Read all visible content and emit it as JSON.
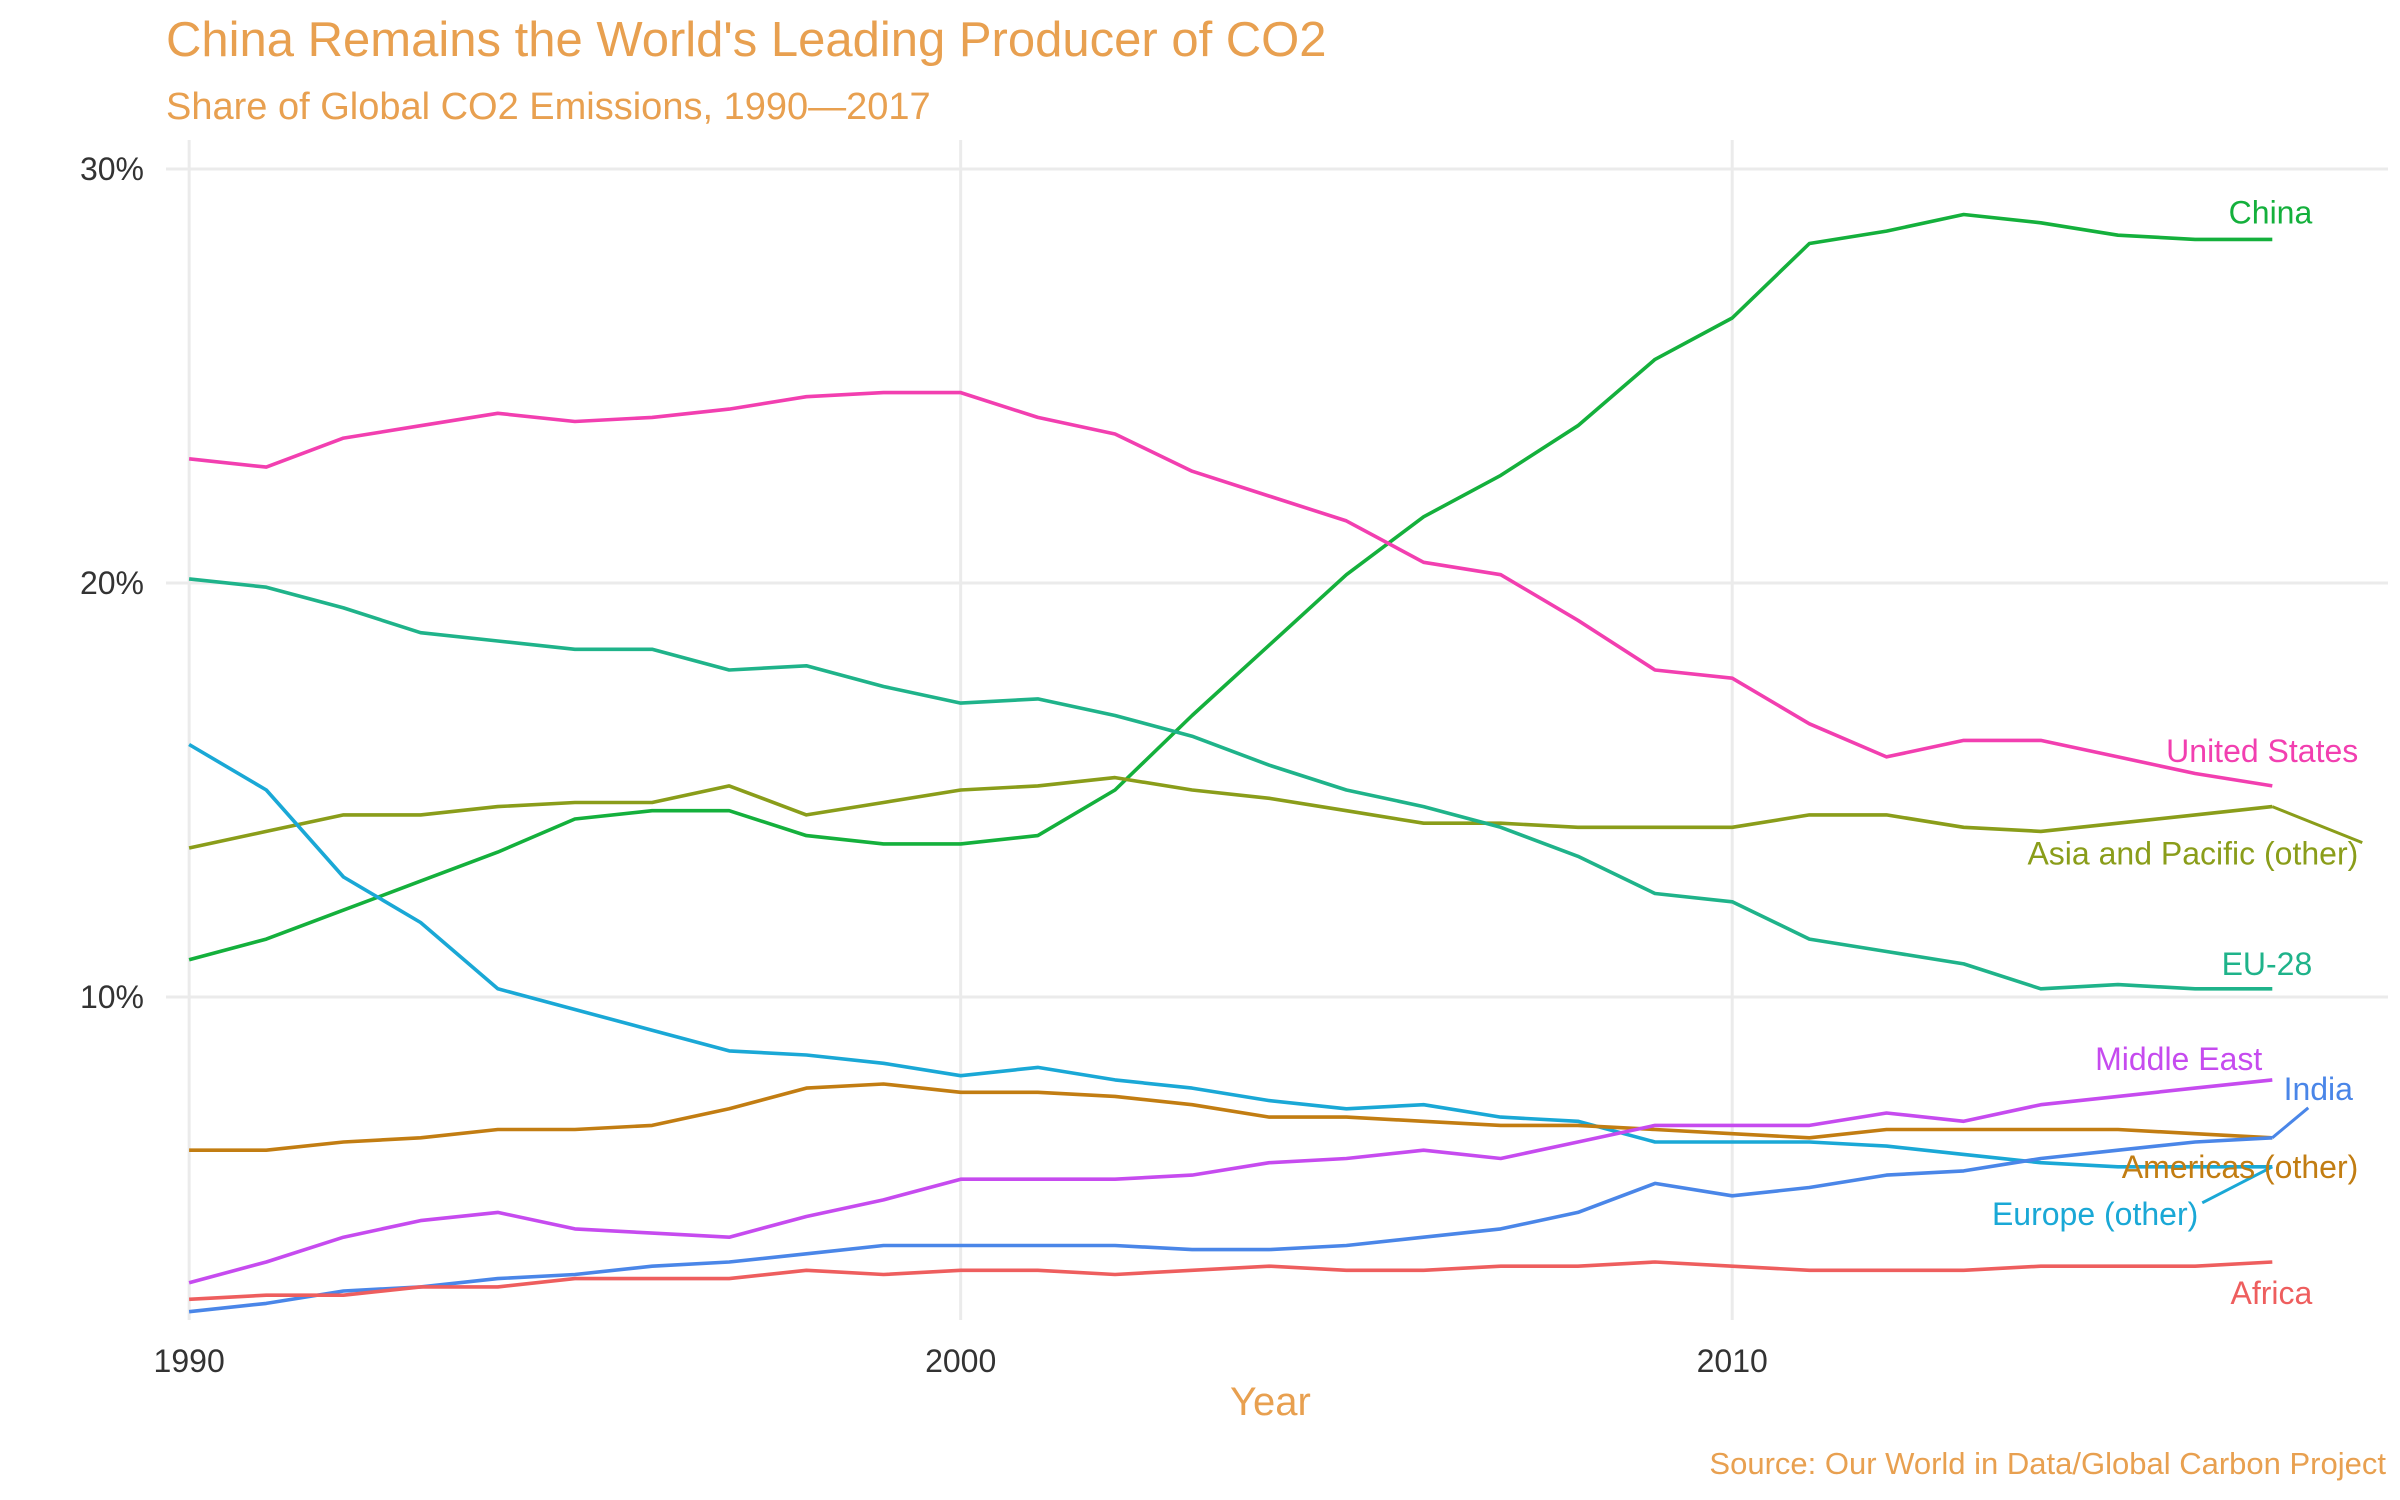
{
  "chart_data": {
    "type": "line",
    "title": "China Remains the World's Leading Producer of CO2",
    "subtitle": "Share of Global CO2 Emissions, 1990—2017",
    "xlabel": "Year",
    "ylabel": "",
    "caption": "Source: Our World in Data/Global Carbon Project",
    "xlim": [
      1989.7,
      2018.5
    ],
    "ylim": [
      2.2,
      30.7
    ],
    "x_ticks": [
      1990,
      2000,
      2010
    ],
    "x_tick_labels": [
      "1990",
      "2000",
      "2010"
    ],
    "y_ticks": [
      10,
      20,
      30
    ],
    "y_tick_labels": [
      "10%",
      "20%",
      "30%"
    ],
    "grid": true,
    "legend": "direct labels at line ends",
    "x": [
      1990,
      1991,
      1992,
      1993,
      1994,
      1995,
      1996,
      1997,
      1998,
      1999,
      2000,
      2001,
      2002,
      2003,
      2004,
      2005,
      2006,
      2007,
      2008,
      2009,
      2010,
      2011,
      2012,
      2013,
      2014,
      2015,
      2016,
      2017
    ],
    "series": [
      {
        "name": "China",
        "color": "#14B03C",
        "values": [
          10.9,
          11.4,
          12.1,
          12.8,
          13.5,
          14.3,
          14.5,
          14.5,
          13.9,
          13.7,
          13.7,
          13.9,
          15.0,
          16.8,
          18.5,
          20.2,
          21.6,
          22.6,
          23.8,
          25.4,
          26.4,
          28.2,
          28.5,
          28.9,
          28.7,
          28.4,
          28.3,
          28.3
        ]
      },
      {
        "name": "United States",
        "color": "#F23FB0",
        "values": [
          23.0,
          22.8,
          23.5,
          23.8,
          24.1,
          23.9,
          24.0,
          24.2,
          24.5,
          24.6,
          24.6,
          24.0,
          23.6,
          22.7,
          22.1,
          21.5,
          20.5,
          20.2,
          19.1,
          17.9,
          17.7,
          16.6,
          15.8,
          16.2,
          16.2,
          15.8,
          15.4,
          15.1
        ]
      },
      {
        "name": "Asia and Pacific (other)",
        "color": "#8A9D1A",
        "values": [
          13.6,
          14.0,
          14.4,
          14.4,
          14.6,
          14.7,
          14.7,
          15.1,
          14.4,
          14.7,
          15.0,
          15.1,
          15.3,
          15.0,
          14.8,
          14.5,
          14.2,
          14.2,
          14.1,
          14.1,
          14.1,
          14.4,
          14.4,
          14.1,
          14.0,
          14.2,
          14.4,
          14.6
        ]
      },
      {
        "name": "EU-28",
        "color": "#1FB38A",
        "values": [
          20.1,
          19.9,
          19.4,
          18.8,
          18.6,
          18.4,
          18.4,
          17.9,
          18.0,
          17.5,
          17.1,
          17.2,
          16.8,
          16.3,
          15.6,
          15.0,
          14.6,
          14.1,
          13.4,
          12.5,
          12.3,
          11.4,
          11.1,
          10.8,
          10.2,
          10.3,
          10.2,
          10.2
        ]
      },
      {
        "name": "Europe (other)",
        "color": "#1AA8D6",
        "values": [
          16.1,
          15.0,
          12.9,
          11.8,
          10.2,
          9.7,
          9.2,
          8.7,
          8.6,
          8.4,
          8.1,
          8.3,
          8.0,
          7.8,
          7.5,
          7.3,
          7.4,
          7.1,
          7.0,
          6.5,
          6.5,
          6.5,
          6.4,
          6.2,
          6.0,
          5.9,
          5.9,
          5.9
        ]
      },
      {
        "name": "Americas (other)",
        "color": "#C27D12",
        "values": [
          6.3,
          6.3,
          6.5,
          6.6,
          6.8,
          6.8,
          6.9,
          7.3,
          7.8,
          7.9,
          7.7,
          7.7,
          7.6,
          7.4,
          7.1,
          7.1,
          7.0,
          6.9,
          6.9,
          6.8,
          6.7,
          6.6,
          6.8,
          6.8,
          6.8,
          6.8,
          6.7,
          6.6
        ]
      },
      {
        "name": "Middle East",
        "color": "#C64BEF",
        "values": [
          3.1,
          3.6,
          4.2,
          4.6,
          4.8,
          4.4,
          4.3,
          4.2,
          4.7,
          5.1,
          5.6,
          5.6,
          5.6,
          5.7,
          6.0,
          6.1,
          6.3,
          6.1,
          6.5,
          6.9,
          6.9,
          6.9,
          7.2,
          7.0,
          7.4,
          7.6,
          7.8,
          8.0
        ]
      },
      {
        "name": "India",
        "color": "#4A86E8",
        "values": [
          2.4,
          2.6,
          2.9,
          3.0,
          3.2,
          3.3,
          3.5,
          3.6,
          3.8,
          4.0,
          4.0,
          4.0,
          4.0,
          3.9,
          3.9,
          4.0,
          4.2,
          4.4,
          4.8,
          5.5,
          5.2,
          5.4,
          5.7,
          5.8,
          6.1,
          6.3,
          6.5,
          6.6
        ]
      },
      {
        "name": "Africa",
        "color": "#EE5E5E",
        "values": [
          2.7,
          2.8,
          2.8,
          3.0,
          3.0,
          3.2,
          3.2,
          3.2,
          3.4,
          3.3,
          3.4,
          3.4,
          3.3,
          3.4,
          3.5,
          3.4,
          3.4,
          3.5,
          3.5,
          3.6,
          3.5,
          3.4,
          3.4,
          3.4,
          3.5,
          3.5,
          3.5,
          3.6
        ]
      }
    ]
  }
}
